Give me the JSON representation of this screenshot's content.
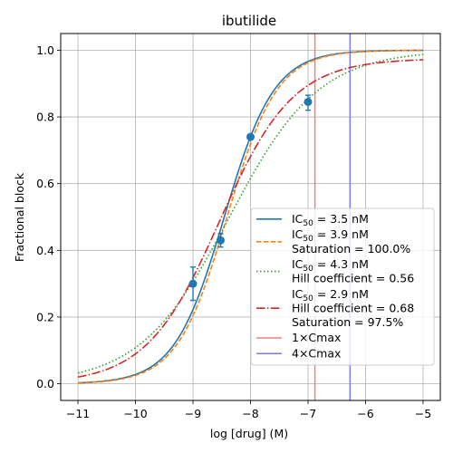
{
  "chart_data": {
    "type": "line",
    "title": "ibutilide",
    "xlabel": "log [drug] (M)",
    "ylabel": "Fractional block",
    "xlim": [
      -11.3,
      -4.7
    ],
    "ylim": [
      -0.05,
      1.05
    ],
    "xticks": [
      -11,
      -10,
      -9,
      -8,
      -7,
      -6,
      -5
    ],
    "xtick_labels": [
      "−11",
      "−10",
      "−9",
      "−8",
      "−7",
      "−6",
      "−5"
    ],
    "yticks": [
      0.0,
      0.2,
      0.4,
      0.6,
      0.8,
      1.0
    ],
    "ytick_labels": [
      "0.0",
      "0.2",
      "0.4",
      "0.6",
      "0.8",
      "1.0"
    ],
    "grid": true,
    "legend_position": "lower-right",
    "series": [
      {
        "name_lines": [
          {
            "pre": "IC",
            "sub": "50",
            "post": " = 3.5 nM"
          }
        ],
        "color": "#1f77b4",
        "dash": "solid",
        "ic50_nM": 3.5,
        "hill": 1.0,
        "saturation": 1.0
      },
      {
        "name_lines": [
          {
            "pre": "IC",
            "sub": "50",
            "post": " = 3.9 nM"
          },
          {
            "pre": "Saturation = 100.0%"
          }
        ],
        "color": "#ff7f0e",
        "dash": "dashed",
        "ic50_nM": 3.9,
        "hill": 1.0,
        "saturation": 1.0
      },
      {
        "name_lines": [
          {
            "pre": "IC",
            "sub": "50",
            "post": " = 4.3 nM"
          },
          {
            "pre": "Hill coefficient = 0.56"
          }
        ],
        "color": "#2ca02c",
        "dash": "dotted",
        "ic50_nM": 4.3,
        "hill": 0.56,
        "saturation": 1.0
      },
      {
        "name_lines": [
          {
            "pre": "IC",
            "sub": "50",
            "post": " = 2.9 nM"
          },
          {
            "pre": "Hill coefficient = 0.68"
          },
          {
            "pre": "Saturation = 97.5%"
          }
        ],
        "color": "#d62728",
        "dash": "dashdot",
        "ic50_nM": 2.9,
        "hill": 0.68,
        "saturation": 0.975
      }
    ],
    "vlines": [
      {
        "name": "1×Cmax",
        "x": -6.88,
        "color": "#f08080"
      },
      {
        "name": "4×Cmax",
        "x": -6.27,
        "color": "#7b7bff"
      }
    ],
    "data_points": {
      "color": "#1f77b4",
      "points": [
        {
          "x": -9.0,
          "y": 0.3,
          "err_low": 0.05,
          "err_high": 0.05
        },
        {
          "x": -8.52,
          "y": 0.43,
          "err_low": 0.02,
          "err_high": 0.02
        },
        {
          "x": -8.0,
          "y": 0.74,
          "err_low": 0.0,
          "err_high": 0.0
        },
        {
          "x": -7.0,
          "y": 0.845,
          "err_low": 0.025,
          "err_high": 0.02
        }
      ]
    }
  }
}
